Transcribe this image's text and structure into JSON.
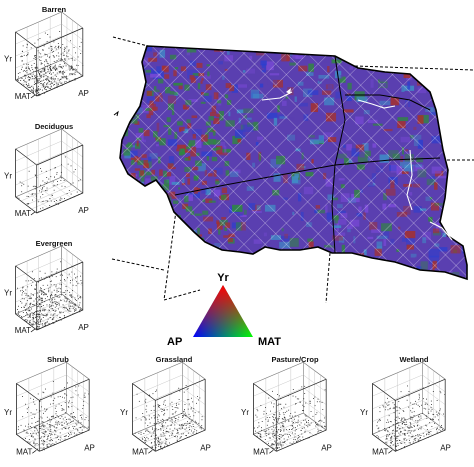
{
  "chart_data": [
    {
      "type": "scatter",
      "subtype": "3d-scatter",
      "title": "Barren",
      "axes": [
        "Yr",
        "MAT",
        "AP"
      ],
      "density": "high",
      "cluster": "low-AP corner, spread along MAT"
    },
    {
      "type": "scatter",
      "subtype": "3d-scatter",
      "title": "Deciduous",
      "axes": [
        "Yr",
        "MAT",
        "AP"
      ],
      "density": "low",
      "cluster": "sparse, center"
    },
    {
      "type": "scatter",
      "subtype": "3d-scatter",
      "title": "Evergreen",
      "axes": [
        "Yr",
        "MAT",
        "AP"
      ],
      "density": "high",
      "cluster": "dense near origin"
    },
    {
      "type": "scatter",
      "subtype": "3d-scatter",
      "title": "Shrub",
      "axes": [
        "Yr",
        "MAT",
        "AP"
      ],
      "density": "medium",
      "cluster": "spread along floor"
    },
    {
      "type": "scatter",
      "subtype": "3d-scatter",
      "title": "Grassland",
      "axes": [
        "Yr",
        "MAT",
        "AP"
      ],
      "density": "medium",
      "cluster": "spread along floor"
    },
    {
      "type": "scatter",
      "subtype": "3d-scatter",
      "title": "Pasture/Crop",
      "axes": [
        "Yr",
        "MAT",
        "AP"
      ],
      "density": "medium",
      "cluster": "toward AP side"
    },
    {
      "type": "scatter",
      "subtype": "3d-scatter",
      "title": "Wetland",
      "axes": [
        "Yr",
        "MAT",
        "AP"
      ],
      "density": "medium",
      "cluster": "spread along floor"
    },
    {
      "type": "heatmap",
      "subtype": "rgb-composite map",
      "legend": {
        "shape": "triangle",
        "labels": {
          "top": "Yr",
          "left": "AP",
          "right": "MAT"
        },
        "colors": {
          "top": "#ff0000",
          "left": "#0000ff",
          "right": "#00ff00"
        }
      }
    }
  ],
  "colors": {
    "background": "#ffffff",
    "map_dominant": "#5a3fb0",
    "map_green": "#2e8b3a",
    "map_red": "#a8302a",
    "map_cyan": "#3f8fc8",
    "hatch": "#ffffff",
    "ink": "#111111"
  }
}
